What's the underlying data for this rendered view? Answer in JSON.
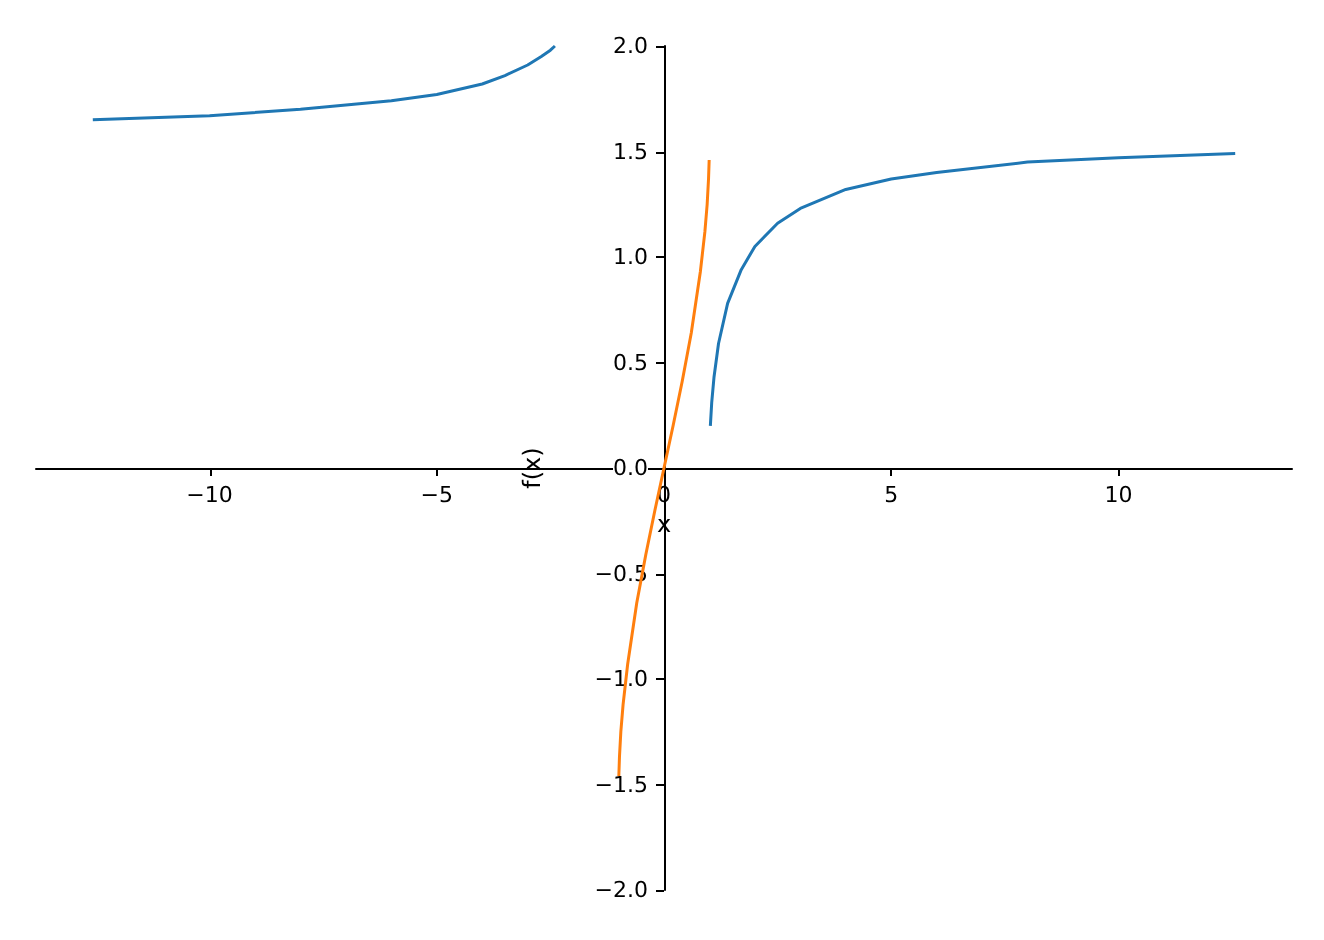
{
  "chart_data": {
    "type": "line",
    "xlabel": "x",
    "ylabel": "f(x)",
    "xlim": [
      -13.82,
      13.82
    ],
    "ylim": [
      -2,
      2
    ],
    "xticks": [
      {
        "value": -10,
        "label": "−10"
      },
      {
        "value": -5,
        "label": "−5"
      },
      0,
      5,
      10
    ],
    "yticks": [
      {
        "value": -2,
        "label": "−2.0"
      },
      {
        "value": -1.5,
        "label": "−1.5"
      },
      {
        "value": -1,
        "label": "−1.0"
      },
      {
        "value": -0.5,
        "label": "−0.5"
      },
      {
        "value": 0,
        "label": "0.0"
      },
      {
        "value": 0.5,
        "label": "0.5"
      },
      {
        "value": 1,
        "label": "1.0"
      },
      {
        "value": 1.5,
        "label": "1.5"
      },
      {
        "value": 2,
        "label": "2.0"
      }
    ],
    "marker": "none",
    "line_style": "solid",
    "series": [
      {
        "color": "#1f77b4",
        "x": [
          -12.57,
          -10,
          -8,
          -6,
          -5,
          -4,
          -3.5,
          -3,
          -2.7,
          -2.5,
          -2.4
        ],
        "values": [
          1.65,
          1.67,
          1.7,
          1.74,
          1.77,
          1.82,
          1.86,
          1.91,
          1.95,
          1.98,
          2.0
        ]
      },
      {
        "color": "#1f77b4",
        "x": [
          1.02,
          1.05,
          1.1,
          1.2,
          1.4,
          1.7,
          2,
          2.5,
          3,
          4,
          5,
          6,
          8,
          10,
          12.57
        ],
        "values": [
          0.2,
          0.31,
          0.43,
          0.59,
          0.78,
          0.94,
          1.05,
          1.16,
          1.23,
          1.32,
          1.37,
          1.4,
          1.45,
          1.47,
          1.49
        ]
      },
      {
        "color": "#ff7f0e",
        "x": [
          -0.994,
          -0.98,
          -0.95,
          -0.9,
          -0.8,
          -0.6,
          -0.4,
          -0.2,
          0,
          0.2,
          0.4,
          0.6,
          0.8,
          0.9,
          0.95,
          0.98,
          0.994
        ],
        "values": [
          -1.46,
          -1.37,
          -1.25,
          -1.12,
          -0.93,
          -0.64,
          -0.41,
          -0.2,
          0,
          0.2,
          0.41,
          0.64,
          0.93,
          1.12,
          1.25,
          1.37,
          1.46
        ]
      }
    ]
  }
}
